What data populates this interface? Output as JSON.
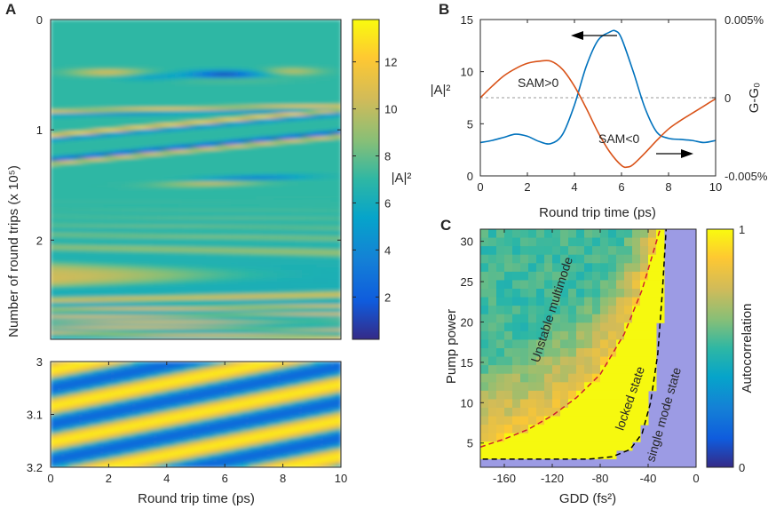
{
  "panels": {
    "A": {
      "letter": "A",
      "ylabel": "Number of round trips (x 10⁵)",
      "xlabel": "Round trip time (ps)",
      "colorbar_label": "|A|²"
    },
    "B": {
      "letter": "B",
      "xlabel": "Round trip time (ps)",
      "ylabel_left": "|A|²",
      "ylabel_right": "G-G₀",
      "annotations": [
        "SAM>0",
        "SAM<0"
      ]
    },
    "C": {
      "letter": "C",
      "xlabel": "GDD (fs²)",
      "ylabel": "Pump power",
      "colorbar_label": "Autocorrelation",
      "region_labels": [
        "Unstable multimode",
        "locked state",
        "single mode state"
      ]
    }
  },
  "colors": {
    "line_intensity": "#0072BD",
    "line_gain": "#D95319",
    "boundary_dashed_red": "#D0202E",
    "boundary_dashed_black": "#000000",
    "single_mode_region": "#9C9BE4"
  },
  "chart_data": [
    {
      "id": "A-top",
      "type": "heatmap",
      "title": "",
      "xlabel": "Round trip time (ps)",
      "ylabel": "Number of round trips (x 10⁵)",
      "xlim": [
        0,
        10
      ],
      "ylim": [
        0,
        2.9
      ],
      "x_ticks": [
        "0",
        "2",
        "4",
        "6",
        "8",
        "10"
      ],
      "y_ticks": [
        "0",
        "1",
        "2"
      ],
      "y_tick_values": [
        0,
        1,
        2
      ],
      "colorbar": {
        "label": "|A|²",
        "range": [
          0.2,
          13.8
        ],
        "ticks": [
          "2",
          "4",
          "6",
          "8",
          "10",
          "12"
        ]
      },
      "features": [
        {
          "kind": "blob",
          "t": 6.0,
          "n": 0.5,
          "value": 0.4
        },
        {
          "kind": "blob",
          "t": 2.0,
          "n": 0.48,
          "value": 11
        },
        {
          "kind": "stripe",
          "n_at_t0": 1.27,
          "n_at_t10": 1.02,
          "value": 0.8
        },
        {
          "kind": "stripe",
          "n_at_t0": 1.05,
          "n_at_t10": 0.82,
          "value": 13
        }
      ]
    },
    {
      "id": "A-bottom",
      "type": "heatmap",
      "xlabel": "Round trip time (ps)",
      "xlim": [
        0,
        10
      ],
      "ylim": [
        3.0,
        3.2
      ],
      "x_ticks": [
        "0",
        "2",
        "4",
        "6",
        "8",
        "10"
      ],
      "y_ticks": [
        "3",
        "3.1",
        "3.2"
      ],
      "y_tick_values": [
        3.0,
        3.1,
        3.2
      ]
    },
    {
      "id": "B",
      "type": "line",
      "xlabel": "Round trip time (ps)",
      "ylabel": "|A|²",
      "ylabel_right": "G-G₀",
      "xlim": [
        0,
        10
      ],
      "ylim": [
        0,
        15
      ],
      "x_ticks": [
        "0",
        "2",
        "4",
        "6",
        "8",
        "10"
      ],
      "y_ticks": [
        "0",
        "5",
        "10",
        "15"
      ],
      "y_right_ticks": [
        "0.005%",
        "0",
        "-0.005%"
      ],
      "series": [
        {
          "name": "|A|²",
          "x": [
            0,
            0.5,
            1,
            1.5,
            2,
            2.5,
            3,
            3.5,
            4,
            4.5,
            5,
            5.5,
            5.75,
            6,
            6.5,
            7,
            7.5,
            8,
            8.5,
            9,
            9.5,
            10
          ],
          "y": [
            3.2,
            3.4,
            3.7,
            4.0,
            3.8,
            3.3,
            3.1,
            4.0,
            6.8,
            10.5,
            13.0,
            13.8,
            13.9,
            13.2,
            10.0,
            6.5,
            4.2,
            3.6,
            3.5,
            3.4,
            3.2,
            3.4
          ]
        },
        {
          "name": "G-G₀",
          "x": [
            0,
            0.5,
            1,
            1.5,
            2,
            2.5,
            3,
            3.5,
            4,
            4.5,
            5,
            5.5,
            6,
            6.25,
            6.5,
            7,
            7.5,
            8,
            8.5,
            9,
            9.5,
            10
          ],
          "y": [
            7.5,
            8.6,
            9.6,
            10.3,
            10.8,
            11.0,
            11.0,
            10.2,
            8.6,
            6.5,
            4.2,
            2.3,
            1.0,
            0.85,
            1.1,
            2.2,
            3.4,
            4.5,
            5.3,
            6.0,
            6.7,
            7.4
          ]
        }
      ],
      "reference_line_y": 7.5,
      "annotations": [
        "SAM>0",
        "SAM<0"
      ]
    },
    {
      "id": "C",
      "type": "heatmap",
      "xlabel": "GDD (fs²)",
      "ylabel": "Pump power",
      "xlim": [
        -180,
        0
      ],
      "ylim": [
        2,
        31.5
      ],
      "x_ticks": [
        "-160",
        "-120",
        "-80",
        "-40",
        "0"
      ],
      "x_tick_values": [
        -160,
        -120,
        -80,
        -40,
        0
      ],
      "y_ticks": [
        "5",
        "10",
        "15",
        "20",
        "25",
        "30"
      ],
      "y_tick_values": [
        5,
        10,
        15,
        20,
        25,
        30
      ],
      "colorbar": {
        "label": "Autocorrelation",
        "range": [
          0,
          1
        ],
        "ticks": [
          "0",
          "1"
        ]
      },
      "boundaries": {
        "unstable_to_locked": {
          "x": [
            -180,
            -160,
            -140,
            -120,
            -100,
            -80,
            -60,
            -45,
            -35,
            -30
          ],
          "y": [
            4.5,
            5.5,
            6.7,
            8.4,
            10.6,
            13.5,
            18.5,
            24.0,
            29.0,
            31.5
          ]
        },
        "locked_to_single": {
          "x": [
            -178,
            -150,
            -120,
            -90,
            -70,
            -55,
            -45,
            -38,
            -32,
            -28,
            -25
          ],
          "y": [
            3.0,
            3.0,
            3.0,
            3.0,
            3.3,
            4.2,
            6.2,
            10.0,
            16.0,
            24.0,
            31.5
          ]
        }
      },
      "region_labels": [
        "Unstable multimode",
        "locked state",
        "single mode state"
      ]
    }
  ]
}
